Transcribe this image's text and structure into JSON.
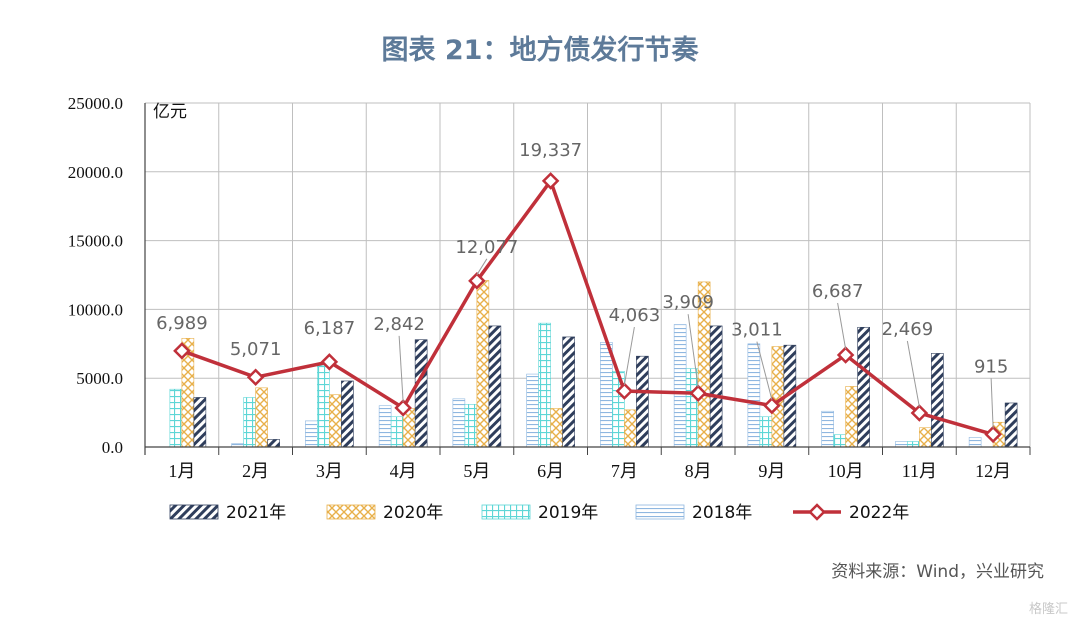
{
  "title": "图表 21：地方债发行节奏",
  "source": "资料来源：Wind，兴业研究",
  "watermark": "格隆汇",
  "colors": {
    "s2021": "#2f3e5c",
    "s2020": "#e8b04a",
    "s2019": "#5dd6d6",
    "s2018": "#8fb7e0",
    "s2022": "#c0303a",
    "grid": "#bfbfbf"
  },
  "chart_data": {
    "type": "bar+line",
    "unit_label": "亿元",
    "ylim": [
      0,
      25000
    ],
    "yticks": [
      {
        "value": 0,
        "label": "0.0"
      },
      {
        "value": 5000,
        "label": "5000.0"
      },
      {
        "value": 10000,
        "label": "10000.0"
      },
      {
        "value": 15000,
        "label": "15000.0"
      },
      {
        "value": 20000,
        "label": "20000.0"
      },
      {
        "value": 25000,
        "label": "25000.0"
      }
    ],
    "categories": [
      "1月",
      "2月",
      "3月",
      "4月",
      "5月",
      "6月",
      "7月",
      "8月",
      "9月",
      "10月",
      "11月",
      "12月"
    ],
    "bar_series": [
      {
        "name": "2018年",
        "key": "s2018",
        "values": [
          0,
          250,
          1900,
          3000,
          3500,
          5300,
          7600,
          8900,
          7500,
          2600,
          400,
          700
        ]
      },
      {
        "name": "2019年",
        "key": "s2019",
        "values": [
          4200,
          3600,
          5900,
          2200,
          3100,
          9000,
          5500,
          5700,
          2200,
          900,
          400,
          0
        ]
      },
      {
        "name": "2020年",
        "key": "s2020",
        "values": [
          7900,
          4300,
          3800,
          2800,
          12100,
          2800,
          2700,
          12000,
          7300,
          4400,
          1400,
          1800
        ]
      },
      {
        "name": "2021年",
        "key": "s2021",
        "values": [
          3600,
          550,
          4800,
          7800,
          8800,
          8000,
          6600,
          8800,
          7400,
          8700,
          6800,
          3200
        ]
      }
    ],
    "line_series": {
      "name": "2022年",
      "key": "s2022",
      "values": [
        6989,
        5071,
        6187,
        2842,
        12077,
        19337,
        4063,
        3909,
        3011,
        6687,
        2469,
        915
      ],
      "labels": [
        "6,989",
        "5,071",
        "6,187",
        "2,842",
        "12,077",
        "19,337",
        "4,063",
        "3,909",
        "3,011",
        "6,687",
        "2,469",
        "915"
      ]
    },
    "legend": [
      {
        "name": "2021年",
        "key": "s2021",
        "kind": "bar"
      },
      {
        "name": "2020年",
        "key": "s2020",
        "kind": "bar"
      },
      {
        "name": "2019年",
        "key": "s2019",
        "kind": "bar"
      },
      {
        "name": "2018年",
        "key": "s2018",
        "kind": "bar"
      },
      {
        "name": "2022年",
        "key": "s2022",
        "kind": "line"
      }
    ],
    "grid": true,
    "legend_position": "bottom"
  }
}
